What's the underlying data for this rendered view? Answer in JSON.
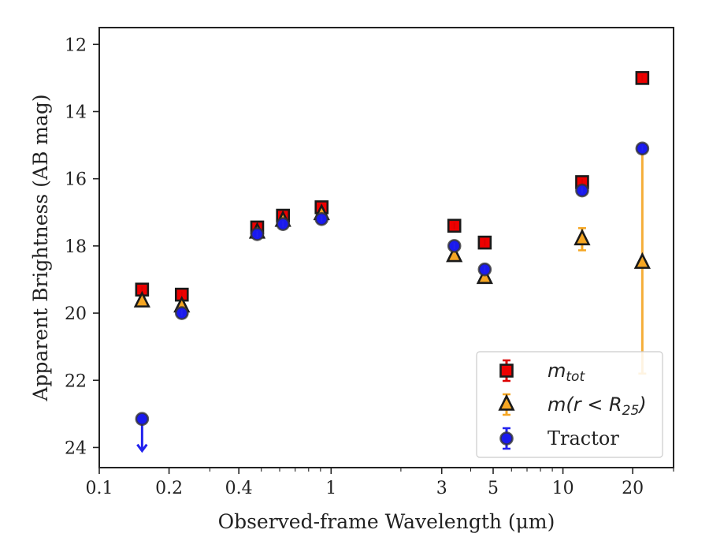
{
  "chart_data": {
    "type": "scatter",
    "xlabel": "Observed-frame Wavelength (μm)",
    "ylabel": "Apparent Brightness (AB mag)",
    "x_scale": "log",
    "xlim": [
      0.1,
      30
    ],
    "ylim": [
      24.6,
      11.5
    ],
    "y_inverted": true,
    "grid": false,
    "legend_position": "lower-right",
    "x_ticks": [
      {
        "value": 0.1,
        "label": "0.1"
      },
      {
        "value": 0.2,
        "label": "0.2"
      },
      {
        "value": 0.4,
        "label": "0.4"
      },
      {
        "value": 1,
        "label": "1"
      },
      {
        "value": 3,
        "label": "3"
      },
      {
        "value": 5,
        "label": "5"
      },
      {
        "value": 10,
        "label": "10"
      },
      {
        "value": 20,
        "label": "20"
      }
    ],
    "y_ticks": [
      {
        "value": 12,
        "label": "12"
      },
      {
        "value": 14,
        "label": "14"
      },
      {
        "value": 16,
        "label": "16"
      },
      {
        "value": 18,
        "label": "18"
      },
      {
        "value": 20,
        "label": "20"
      },
      {
        "value": 22,
        "label": "22"
      },
      {
        "value": 24,
        "label": "24"
      }
    ],
    "series": [
      {
        "name": "m_tot",
        "legend_main": "m",
        "legend_sub": "tot",
        "marker": "square",
        "fill": "#ee0000",
        "edge": "#1a1a1a",
        "errcolor": "#dd0000",
        "points": [
          {
            "x": 0.153,
            "y": 19.3,
            "err": 0.05
          },
          {
            "x": 0.227,
            "y": 19.45,
            "err": 0.05
          },
          {
            "x": 0.48,
            "y": 17.45,
            "err": 0.05
          },
          {
            "x": 0.62,
            "y": 17.1,
            "err": 0.05
          },
          {
            "x": 0.91,
            "y": 16.85,
            "err": 0.05
          },
          {
            "x": 3.4,
            "y": 17.4,
            "err": 0.05
          },
          {
            "x": 4.6,
            "y": 17.9,
            "err": 0.05
          },
          {
            "x": 12.1,
            "y": 16.1,
            "err": 0.05
          },
          {
            "x": 22.0,
            "y": 13.0,
            "err": 0.05
          }
        ]
      },
      {
        "name": "m(r<R25)",
        "legend_main": "m(r < R",
        "legend_sub": "25",
        "legend_end": ")",
        "marker": "triangle",
        "fill": "#f5a623",
        "edge": "#1a1a1a",
        "errcolor": "#f5a623",
        "points": [
          {
            "x": 0.153,
            "y": 19.65,
            "err": 0.05
          },
          {
            "x": 0.227,
            "y": 19.8,
            "err": 0.05
          },
          {
            "x": 0.48,
            "y": 17.6,
            "err": 0.05
          },
          {
            "x": 0.62,
            "y": 17.25,
            "err": 0.05
          },
          {
            "x": 0.91,
            "y": 17.05,
            "err": 0.05
          },
          {
            "x": 3.4,
            "y": 18.3,
            "err": 0.05
          },
          {
            "x": 4.6,
            "y": 18.95,
            "err": 0.05
          },
          {
            "x": 12.1,
            "y": 17.8,
            "err": 0.33
          },
          {
            "x": 22.0,
            "y": 18.5,
            "err_upper": 3.3,
            "err_lower": 3.3
          }
        ]
      },
      {
        "name": "Tractor",
        "legend_main": "Tractor",
        "marker": "circle",
        "fill": "#1a1aee",
        "edge": "#333333",
        "errcolor": "#2222ee",
        "points": [
          {
            "x": 0.153,
            "y": 23.15,
            "upper_limit": true,
            "arrow_to": 24.1
          },
          {
            "x": 0.227,
            "y": 20.0,
            "err": 0.05
          },
          {
            "x": 0.48,
            "y": 17.65,
            "err": 0.05
          },
          {
            "x": 0.62,
            "y": 17.35,
            "err": 0.05
          },
          {
            "x": 0.91,
            "y": 17.2,
            "err": 0.05
          },
          {
            "x": 3.4,
            "y": 18.0,
            "err": 0.05
          },
          {
            "x": 4.6,
            "y": 18.7,
            "err": 0.05
          },
          {
            "x": 12.1,
            "y": 16.35,
            "err": 0.05
          },
          {
            "x": 22.0,
            "y": 15.1,
            "err": 0.05
          }
        ]
      }
    ]
  }
}
